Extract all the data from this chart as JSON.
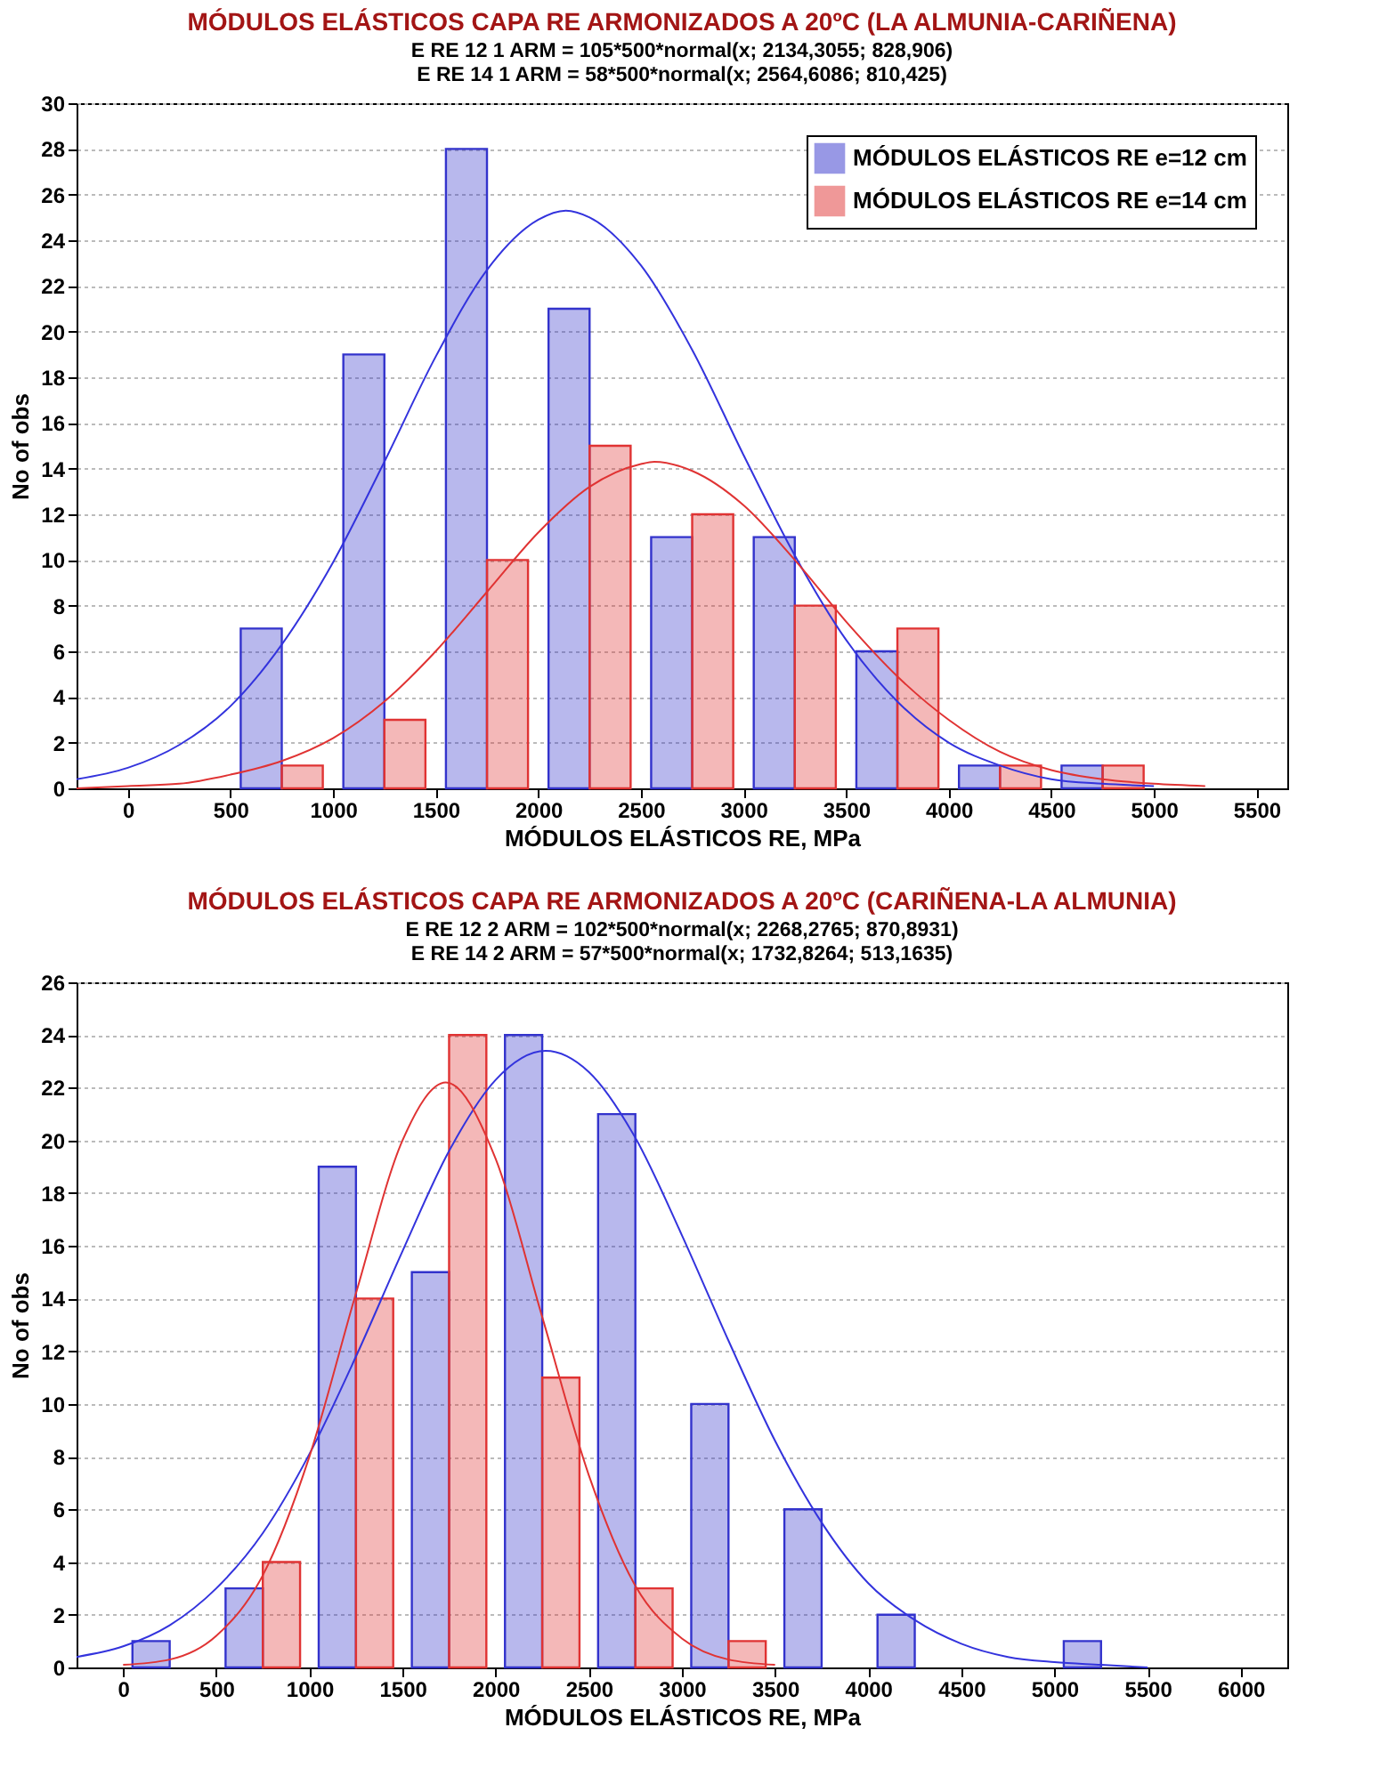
{
  "chart_data": [
    {
      "type": "bar",
      "title": "MÓDULOS ELÁSTICOS CAPA RE ARMONIZADOS A 20ºC (LA ALMUNIA-CARIÑENA)",
      "subtitle": "E RE 12 1 ARM = 105*500*normal(x; 2134,3055; 828,906)\nE RE 14 1 ARM = 58*500*normal(x; 2564,6086; 810,425)",
      "xlabel": "MÓDULOS ELÁSTICOS RE, MPa",
      "ylabel": "No of obs",
      "xlim": [
        -250,
        5650
      ],
      "xticks": [
        0,
        500,
        1000,
        1500,
        2000,
        2500,
        3000,
        3500,
        4000,
        4500,
        5000,
        5500
      ],
      "ylim": [
        0,
        30
      ],
      "yticks": [
        0,
        2,
        4,
        6,
        8,
        10,
        12,
        14,
        16,
        18,
        20,
        22,
        24,
        26,
        28,
        30
      ],
      "grid": "y",
      "legend": "top right",
      "series": [
        {
          "name": "MÓDULOS ELÁSTICOS RE e=12 cm",
          "color": "#3333cc",
          "x": [
            650,
            1150,
            1650,
            2150,
            2650,
            3150,
            3650,
            4150,
            4650
          ],
          "values": [
            7,
            19,
            28,
            21,
            11,
            11,
            6,
            1,
            1
          ]
        },
        {
          "name": "MÓDULOS ELÁSTICOS RE e=14 cm",
          "color": "#e03333",
          "x": [
            850,
            1350,
            1850,
            2350,
            2850,
            3350,
            3850,
            4350,
            4850
          ],
          "values": [
            1,
            3,
            10,
            15,
            12,
            8,
            7,
            1,
            1
          ]
        },
        {
          "type": "line",
          "color": "#3333dd",
          "x": [
            -250,
            0,
            250,
            500,
            750,
            1000,
            1250,
            1500,
            1750,
            2000,
            2134,
            2250,
            2500,
            2750,
            3000,
            3250,
            3500,
            3750,
            4000,
            4250,
            4500,
            4750,
            5000
          ],
          "values": [
            0.4,
            0.9,
            1.9,
            3.6,
            6.3,
            9.9,
            14.3,
            18.9,
            22.7,
            24.9,
            25.3,
            25.0,
            22.9,
            19.2,
            14.6,
            10.2,
            6.5,
            3.8,
            2.0,
            1.0,
            0.4,
            0.2,
            0.1
          ]
        },
        {
          "type": "line",
          "color": "#e03333",
          "x": [
            -250,
            0,
            250,
            500,
            750,
            1000,
            1250,
            1500,
            1750,
            2000,
            2250,
            2500,
            2565,
            2750,
            3000,
            3250,
            3500,
            3750,
            4000,
            4250,
            4500,
            4750,
            5000,
            5250
          ],
          "values": [
            0.0,
            0.1,
            0.2,
            0.6,
            1.2,
            2.2,
            3.8,
            6.0,
            8.6,
            11.2,
            13.2,
            14.2,
            14.3,
            13.9,
            12.4,
            10.0,
            7.3,
            4.9,
            3.0,
            1.6,
            0.8,
            0.4,
            0.2,
            0.1
          ]
        }
      ]
    },
    {
      "type": "bar",
      "title": "MÓDULOS ELÁSTICOS CAPA RE ARMONIZADOS A 20ºC (CARIÑENA-LA ALMUNIA)",
      "subtitle": "E RE 12 2 ARM = 102*500*normal(x; 2268,2765; 870,8931)\nE RE 14 2 ARM = 57*500*normal(x; 1732,8264; 513,1635)",
      "xlabel": "MÓDULOS ELÁSTICOS RE, MPa",
      "ylabel": "No of obs",
      "xlim": [
        -250,
        6250
      ],
      "xticks": [
        0,
        500,
        1000,
        1500,
        2000,
        2500,
        3000,
        3500,
        4000,
        4500,
        5000,
        5500,
        6000
      ],
      "ylim": [
        0,
        26
      ],
      "yticks": [
        0,
        2,
        4,
        6,
        8,
        10,
        12,
        14,
        16,
        18,
        20,
        22,
        24,
        26
      ],
      "grid": "y",
      "legend": "top right",
      "series": [
        {
          "name": "MÓDULOS ELÁSTICOS RE e=12 cm",
          "color": "#3333cc",
          "x": [
            150,
            650,
            1150,
            1650,
            2150,
            2650,
            3150,
            3650,
            4150,
            5150
          ],
          "values": [
            1,
            3,
            19,
            15,
            24,
            21,
            10,
            6,
            2,
            1
          ]
        },
        {
          "name": "MÓDULOS ELÁSTICOS RE e=14 cm",
          "color": "#e03333",
          "x": [
            850,
            1350,
            1850,
            2350,
            2850,
            3350
          ],
          "values": [
            4,
            14,
            24,
            11,
            3,
            1
          ]
        },
        {
          "type": "line",
          "color": "#3333dd",
          "x": [
            -250,
            0,
            250,
            500,
            750,
            1000,
            1250,
            1500,
            1750,
            2000,
            2268,
            2500,
            2750,
            3000,
            3250,
            3500,
            3750,
            4000,
            4250,
            4500,
            4750,
            5000,
            5250,
            5500
          ],
          "values": [
            0.4,
            0.8,
            1.6,
            3.0,
            5.1,
            8.1,
            11.8,
            15.8,
            19.6,
            22.3,
            23.4,
            22.6,
            20.1,
            16.4,
            12.4,
            8.6,
            5.5,
            3.2,
            1.8,
            0.9,
            0.4,
            0.2,
            0.1,
            0.0
          ]
        },
        {
          "type": "line",
          "color": "#e03333",
          "x": [
            0,
            250,
            500,
            750,
            1000,
            1250,
            1500,
            1733,
            2000,
            2250,
            2500,
            2750,
            3000,
            3250,
            3500
          ],
          "values": [
            0.1,
            0.3,
            1.2,
            3.5,
            8.0,
            14.2,
            20.0,
            22.2,
            19.3,
            13.3,
            7.3,
            3.1,
            1.1,
            0.3,
            0.1
          ]
        }
      ]
    }
  ]
}
